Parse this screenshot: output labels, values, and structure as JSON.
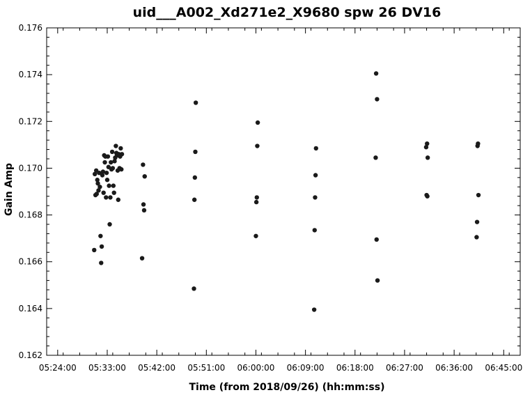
{
  "chart_data": {
    "type": "scatter",
    "title": "uid___A002_Xd271e2_X9680 spw 26 DV16",
    "xlabel": "Time (from 2018/09/26) (hh:mm:ss)",
    "ylabel": "Gain Amp",
    "xlim": [
      "05:22:00",
      "06:48:00"
    ],
    "ylim": [
      0.162,
      0.176
    ],
    "x_ticks": [
      "05:24:00",
      "05:33:00",
      "05:42:00",
      "05:51:00",
      "06:00:00",
      "06:09:00",
      "06:18:00",
      "06:27:00",
      "06:36:00",
      "06:45:00"
    ],
    "y_ticks": [
      "0.162",
      "0.164",
      "0.166",
      "0.168",
      "0.170",
      "0.172",
      "0.174",
      "0.176"
    ],
    "grid": false,
    "marker_color": "#1a1a1a",
    "series": [
      {
        "points": [
          {
            "x": "05:30:38",
            "y": 0.1665
          },
          {
            "x": "05:30:45",
            "y": 0.16975
          },
          {
            "x": "05:30:52",
            "y": 0.16885
          },
          {
            "x": "05:31:00",
            "y": 0.1699
          },
          {
            "x": "05:31:05",
            "y": 0.1689
          },
          {
            "x": "05:31:12",
            "y": 0.1695
          },
          {
            "x": "05:31:18",
            "y": 0.16935
          },
          {
            "x": "05:31:25",
            "y": 0.16905
          },
          {
            "x": "05:31:32",
            "y": 0.1698
          },
          {
            "x": "05:31:40",
            "y": 0.1692
          },
          {
            "x": "05:31:47",
            "y": 0.1671
          },
          {
            "x": "05:31:54",
            "y": 0.16595
          },
          {
            "x": "05:32:00",
            "y": 0.16665
          },
          {
            "x": "05:32:07",
            "y": 0.1697
          },
          {
            "x": "05:32:14",
            "y": 0.16985
          },
          {
            "x": "05:32:20",
            "y": 0.16895
          },
          {
            "x": "05:32:27",
            "y": 0.17055
          },
          {
            "x": "05:32:34",
            "y": 0.17025
          },
          {
            "x": "05:32:40",
            "y": 0.1705
          },
          {
            "x": "05:32:47",
            "y": 0.16875
          },
          {
            "x": "05:32:53",
            "y": 0.1698
          },
          {
            "x": "05:33:00",
            "y": 0.1695
          },
          {
            "x": "05:33:07",
            "y": 0.1705
          },
          {
            "x": "05:33:14",
            "y": 0.17005
          },
          {
            "x": "05:33:20",
            "y": 0.16925
          },
          {
            "x": "05:33:27",
            "y": 0.1676
          },
          {
            "x": "05:33:34",
            "y": 0.16875
          },
          {
            "x": "05:33:40",
            "y": 0.17025
          },
          {
            "x": "05:33:47",
            "y": 0.16995
          },
          {
            "x": "05:33:54",
            "y": 0.1707
          },
          {
            "x": "05:34:00",
            "y": 0.17
          },
          {
            "x": "05:34:07",
            "y": 0.16925
          },
          {
            "x": "05:34:14",
            "y": 0.16895
          },
          {
            "x": "05:34:20",
            "y": 0.1703
          },
          {
            "x": "05:34:27",
            "y": 0.17045
          },
          {
            "x": "05:34:34",
            "y": 0.17095
          },
          {
            "x": "05:34:40",
            "y": 0.17065
          },
          {
            "x": "05:34:47",
            "y": 0.17055
          },
          {
            "x": "05:34:54",
            "y": 0.1699
          },
          {
            "x": "05:35:00",
            "y": 0.16865
          },
          {
            "x": "05:35:07",
            "y": 0.1706
          },
          {
            "x": "05:35:14",
            "y": 0.17
          },
          {
            "x": "05:35:20",
            "y": 0.1705
          },
          {
            "x": "05:35:27",
            "y": 0.17085
          },
          {
            "x": "05:35:34",
            "y": 0.16995
          },
          {
            "x": "05:35:40",
            "y": 0.1706
          },
          {
            "x": "05:39:20",
            "y": 0.16615
          },
          {
            "x": "05:39:30",
            "y": 0.17015
          },
          {
            "x": "05:39:35",
            "y": 0.16845
          },
          {
            "x": "05:39:42",
            "y": 0.1682
          },
          {
            "x": "05:39:48",
            "y": 0.16965
          },
          {
            "x": "05:48:45",
            "y": 0.16485
          },
          {
            "x": "05:48:50",
            "y": 0.16865
          },
          {
            "x": "05:48:55",
            "y": 0.1696
          },
          {
            "x": "05:49:00",
            "y": 0.1707
          },
          {
            "x": "05:49:05",
            "y": 0.1728
          },
          {
            "x": "06:00:00",
            "y": 0.1671
          },
          {
            "x": "06:00:05",
            "y": 0.16855
          },
          {
            "x": "06:00:10",
            "y": 0.16875
          },
          {
            "x": "06:00:15",
            "y": 0.17095
          },
          {
            "x": "06:00:20",
            "y": 0.17195
          },
          {
            "x": "06:10:35",
            "y": 0.16395
          },
          {
            "x": "06:10:40",
            "y": 0.16735
          },
          {
            "x": "06:10:45",
            "y": 0.16875
          },
          {
            "x": "06:10:50",
            "y": 0.1697
          },
          {
            "x": "06:10:55",
            "y": 0.17085
          },
          {
            "x": "06:21:50",
            "y": 0.17405
          },
          {
            "x": "06:21:55",
            "y": 0.16695
          },
          {
            "x": "06:22:00",
            "y": 0.17295
          },
          {
            "x": "06:22:05",
            "y": 0.1652
          },
          {
            "x": "06:21:45",
            "y": 0.17045
          },
          {
            "x": "06:30:55",
            "y": 0.1709
          },
          {
            "x": "06:31:00",
            "y": 0.16885
          },
          {
            "x": "06:31:05",
            "y": 0.17105
          },
          {
            "x": "06:31:08",
            "y": 0.1688
          },
          {
            "x": "06:31:12",
            "y": 0.17045
          },
          {
            "x": "06:40:05",
            "y": 0.16705
          },
          {
            "x": "06:40:10",
            "y": 0.1677
          },
          {
            "x": "06:40:15",
            "y": 0.17095
          },
          {
            "x": "06:40:20",
            "y": 0.17105
          },
          {
            "x": "06:40:25",
            "y": 0.16885
          }
        ]
      }
    ]
  }
}
